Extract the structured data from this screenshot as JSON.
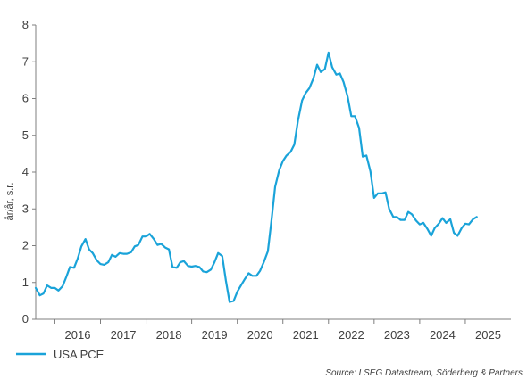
{
  "chart_data": {
    "type": "line",
    "ylabel": "år/år, s.r.",
    "ylim": [
      0,
      8
    ],
    "yticks": [
      0,
      1,
      2,
      3,
      4,
      5,
      6,
      7,
      8
    ],
    "xlim": [
      2015.58,
      2026.0
    ],
    "xticks": [
      {
        "label": "2016",
        "value": 2016.5
      },
      {
        "label": "2017",
        "value": 2017.5
      },
      {
        "label": "2018",
        "value": 2018.5
      },
      {
        "label": "2019",
        "value": 2019.5
      },
      {
        "label": "2020",
        "value": 2020.5
      },
      {
        "label": "2021",
        "value": 2021.5
      },
      {
        "label": "2022",
        "value": 2022.5
      },
      {
        "label": "2023",
        "value": 2023.5
      },
      {
        "label": "2024",
        "value": 2024.5
      },
      {
        "label": "2025",
        "value": 2025.5
      }
    ],
    "year_separators": [
      2016,
      2017,
      2018,
      2019,
      2020,
      2021,
      2022,
      2023,
      2024,
      2025
    ],
    "grid": false,
    "legend_position": "bottom-left",
    "source": "Source: LSEG Datastream, Söderberg & Partners",
    "series": [
      {
        "name": "USA PCE",
        "color": "#1aa3d9",
        "points": [
          [
            2015.58,
            0.85
          ],
          [
            2015.67,
            0.65
          ],
          [
            2015.75,
            0.7
          ],
          [
            2015.83,
            0.92
          ],
          [
            2015.92,
            0.85
          ],
          [
            2016.0,
            0.85
          ],
          [
            2016.08,
            0.78
          ],
          [
            2016.17,
            0.9
          ],
          [
            2016.25,
            1.15
          ],
          [
            2016.33,
            1.42
          ],
          [
            2016.42,
            1.4
          ],
          [
            2016.5,
            1.65
          ],
          [
            2016.58,
            1.98
          ],
          [
            2016.67,
            2.18
          ],
          [
            2016.75,
            1.9
          ],
          [
            2016.83,
            1.8
          ],
          [
            2016.92,
            1.6
          ],
          [
            2017.0,
            1.5
          ],
          [
            2017.08,
            1.48
          ],
          [
            2017.17,
            1.55
          ],
          [
            2017.25,
            1.75
          ],
          [
            2017.33,
            1.7
          ],
          [
            2017.42,
            1.8
          ],
          [
            2017.5,
            1.78
          ],
          [
            2017.58,
            1.78
          ],
          [
            2017.67,
            1.82
          ],
          [
            2017.75,
            1.98
          ],
          [
            2017.83,
            2.02
          ],
          [
            2017.92,
            2.25
          ],
          [
            2018.0,
            2.25
          ],
          [
            2018.08,
            2.32
          ],
          [
            2018.17,
            2.18
          ],
          [
            2018.25,
            2.02
          ],
          [
            2018.33,
            2.05
          ],
          [
            2018.42,
            1.95
          ],
          [
            2018.5,
            1.9
          ],
          [
            2018.58,
            1.42
          ],
          [
            2018.67,
            1.4
          ],
          [
            2018.75,
            1.55
          ],
          [
            2018.83,
            1.58
          ],
          [
            2018.92,
            1.45
          ],
          [
            2019.0,
            1.43
          ],
          [
            2019.08,
            1.45
          ],
          [
            2019.17,
            1.42
          ],
          [
            2019.25,
            1.3
          ],
          [
            2019.33,
            1.28
          ],
          [
            2019.42,
            1.35
          ],
          [
            2019.5,
            1.55
          ],
          [
            2019.58,
            1.8
          ],
          [
            2019.67,
            1.72
          ],
          [
            2019.75,
            1.05
          ],
          [
            2019.83,
            0.47
          ],
          [
            2019.92,
            0.5
          ],
          [
            2020.0,
            0.75
          ],
          [
            2020.08,
            0.92
          ],
          [
            2020.17,
            1.1
          ],
          [
            2020.25,
            1.25
          ],
          [
            2020.33,
            1.18
          ],
          [
            2020.42,
            1.18
          ],
          [
            2020.5,
            1.32
          ],
          [
            2020.58,
            1.55
          ],
          [
            2020.67,
            1.85
          ],
          [
            2020.75,
            2.7
          ],
          [
            2020.83,
            3.6
          ],
          [
            2020.92,
            4.05
          ],
          [
            2021.0,
            4.3
          ],
          [
            2021.08,
            4.45
          ],
          [
            2021.17,
            4.55
          ],
          [
            2021.25,
            4.75
          ],
          [
            2021.33,
            5.4
          ],
          [
            2021.42,
            5.95
          ],
          [
            2021.5,
            6.15
          ],
          [
            2021.58,
            6.28
          ],
          [
            2021.67,
            6.55
          ],
          [
            2021.75,
            6.92
          ],
          [
            2021.83,
            6.72
          ],
          [
            2021.92,
            6.8
          ],
          [
            2022.0,
            7.25
          ],
          [
            2022.08,
            6.85
          ],
          [
            2022.17,
            6.65
          ],
          [
            2022.25,
            6.68
          ],
          [
            2022.33,
            6.45
          ],
          [
            2022.42,
            6.05
          ],
          [
            2022.5,
            5.52
          ],
          [
            2022.58,
            5.52
          ],
          [
            2022.67,
            5.2
          ],
          [
            2022.75,
            4.42
          ],
          [
            2022.83,
            4.45
          ],
          [
            2022.92,
            4.02
          ],
          [
            2023.0,
            3.3
          ],
          [
            2023.08,
            3.42
          ],
          [
            2023.17,
            3.42
          ],
          [
            2023.25,
            3.45
          ],
          [
            2023.33,
            3.0
          ],
          [
            2023.42,
            2.78
          ],
          [
            2023.5,
            2.78
          ],
          [
            2023.58,
            2.7
          ],
          [
            2023.67,
            2.7
          ],
          [
            2023.75,
            2.92
          ],
          [
            2023.83,
            2.85
          ],
          [
            2023.92,
            2.68
          ],
          [
            2024.0,
            2.58
          ],
          [
            2024.08,
            2.62
          ],
          [
            2024.17,
            2.45
          ],
          [
            2024.25,
            2.27
          ],
          [
            2024.33,
            2.48
          ],
          [
            2024.42,
            2.6
          ],
          [
            2024.5,
            2.75
          ],
          [
            2024.58,
            2.62
          ],
          [
            2024.67,
            2.72
          ],
          [
            2024.75,
            2.35
          ],
          [
            2024.83,
            2.27
          ],
          [
            2024.92,
            2.48
          ],
          [
            2025.0,
            2.6
          ],
          [
            2025.08,
            2.58
          ],
          [
            2025.17,
            2.72
          ],
          [
            2025.25,
            2.78
          ]
        ]
      }
    ]
  }
}
